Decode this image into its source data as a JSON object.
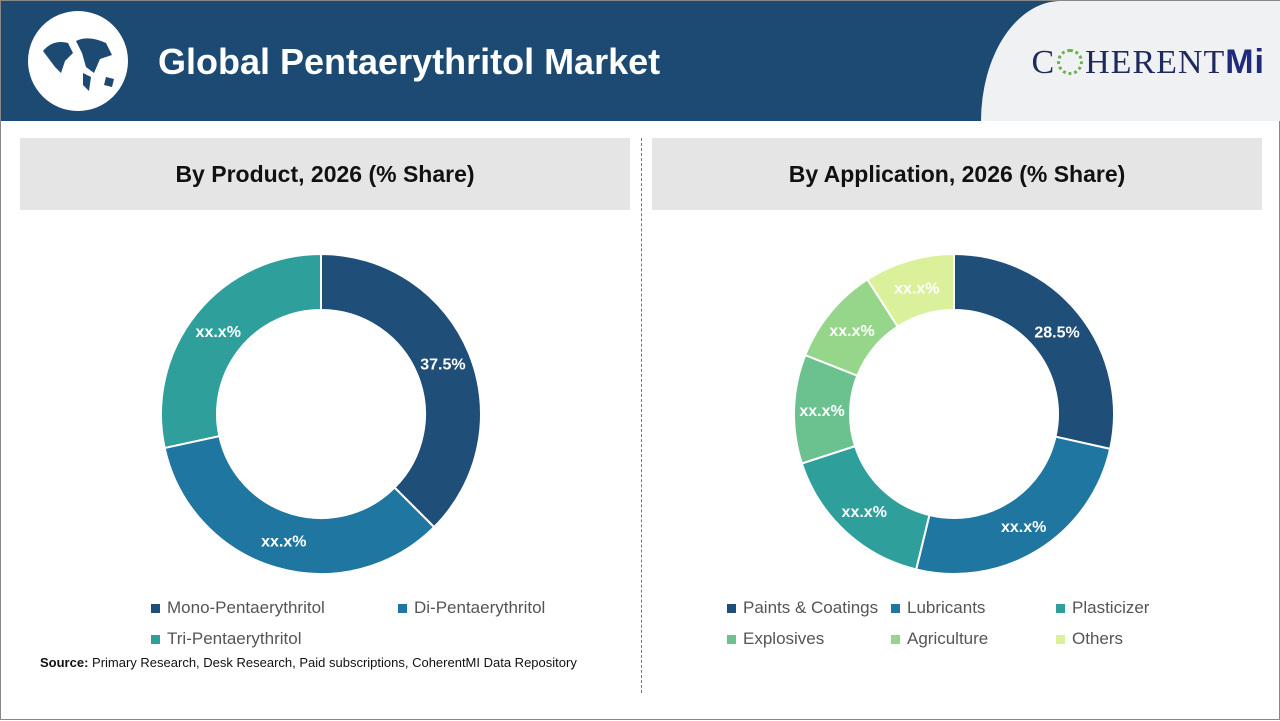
{
  "header": {
    "title": "Global Pentaerythritol Market",
    "brand": "C",
    "brand_rest": "HERENT",
    "brand_mi": "Mi",
    "globe_icon": "world-map-globe"
  },
  "source": {
    "label": "Source:",
    "text": " Primary Research, Desk Research, Paid subscriptions, CoherentMI Data Repository"
  },
  "chart_data": [
    {
      "type": "pie",
      "donut": true,
      "title": "By Product, 2026 (% Share)",
      "categories": [
        "Mono-Pentaerythritol",
        "Di-Pentaerythritol",
        "Tri-Pentaerythritol"
      ],
      "values": [
        37.5,
        34.1,
        28.4
      ],
      "data_labels": [
        "37.5%",
        "xx.x%",
        "xx.x%"
      ],
      "colors": [
        "#1f4e79",
        "#1f76a0",
        "#2f9f9b"
      ],
      "legend": "bottom"
    },
    {
      "type": "pie",
      "donut": true,
      "title": "By Application, 2026 (% Share)",
      "categories": [
        "Paints & Coatings",
        "Lubricants",
        "Plasticizer",
        "Explosives",
        "Agriculture",
        "Others"
      ],
      "values": [
        28.5,
        25.3,
        16.2,
        11.0,
        9.9,
        9.1
      ],
      "data_labels": [
        "28.5%",
        "xx.x%",
        "xx.x%",
        "xx.x%",
        "xx.x%",
        "xx.x%"
      ],
      "colors": [
        "#1f4e79",
        "#1f76a0",
        "#2f9f9b",
        "#6cc28f",
        "#95d68a",
        "#daf09b"
      ],
      "legend": "bottom"
    }
  ]
}
